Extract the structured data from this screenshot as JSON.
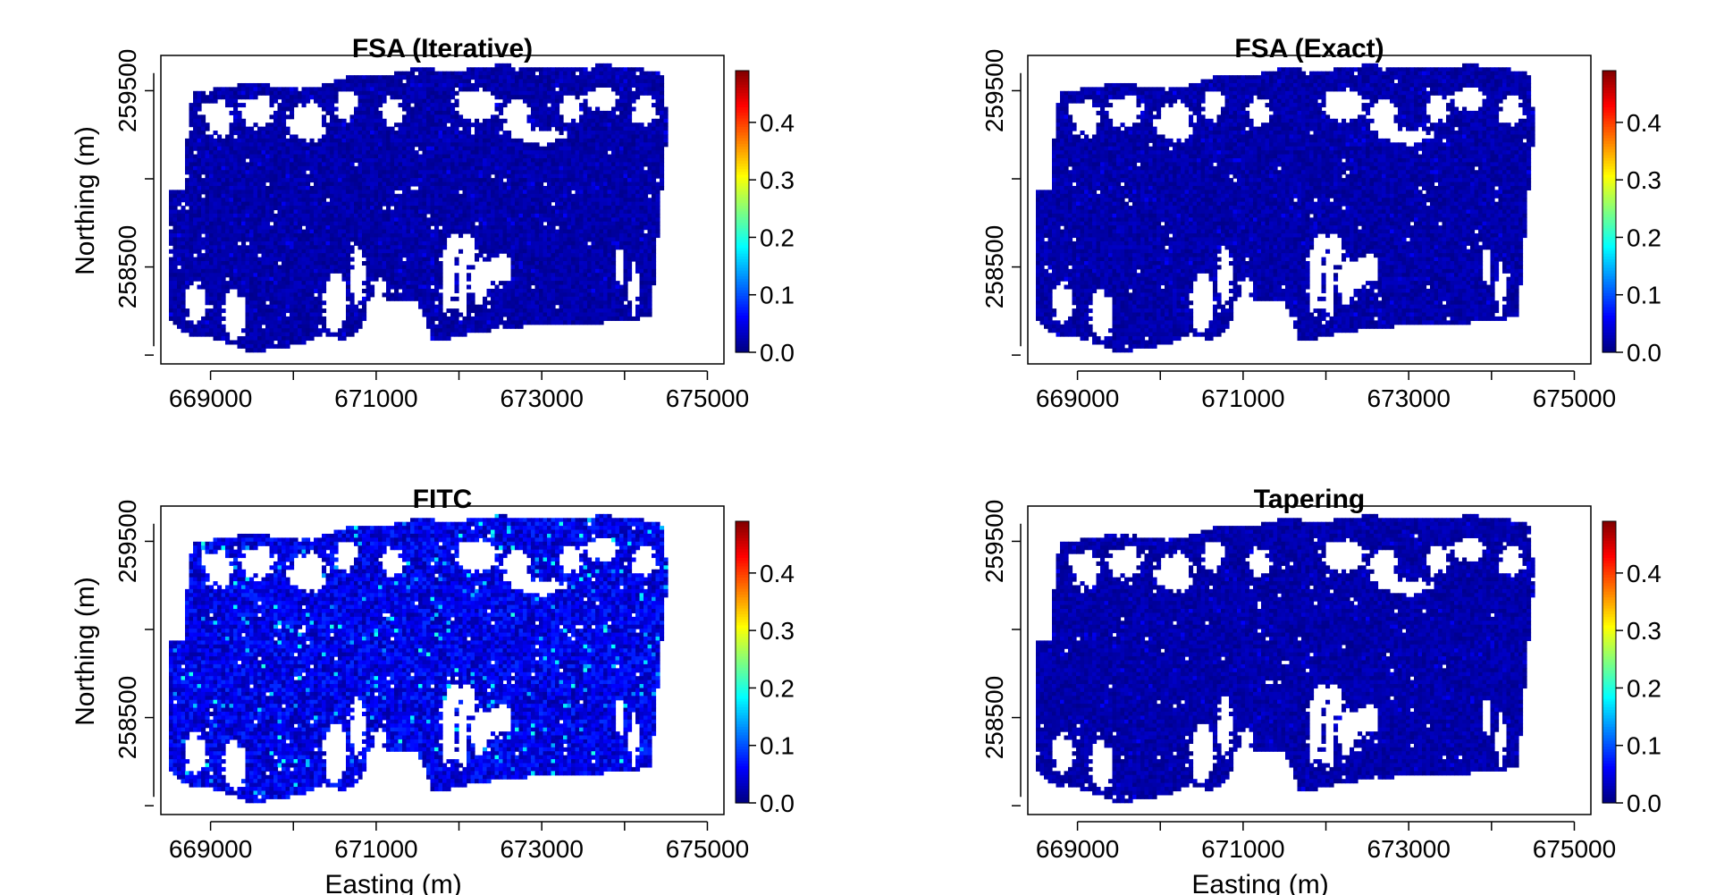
{
  "chart_data": [
    {
      "type": "heatmap",
      "title": "FSA (Iterative)",
      "xlabel": "",
      "ylabel": "Northing (m)",
      "x_ticks": [
        669000,
        671000,
        673000,
        675000
      ],
      "x_tick_labels": [
        "669000",
        "671000",
        "673000",
        "675000"
      ],
      "y_ticks": [
        258500,
        259500
      ],
      "y_tick_labels": [
        "258500",
        "259500"
      ],
      "xlim": [
        668400,
        675200
      ],
      "ylim": [
        257950,
        259700
      ],
      "colorbar_ticks": [
        "0.0",
        "0.1",
        "0.2",
        "0.3",
        "0.4"
      ],
      "colorbar_range": [
        0,
        0.49
      ],
      "intensity_mean": 0.02,
      "intensity_max": 0.06
    },
    {
      "type": "heatmap",
      "title": "FSA (Exact)",
      "xlabel": "",
      "ylabel": "",
      "x_ticks": [
        669000,
        671000,
        673000,
        675000
      ],
      "x_tick_labels": [
        "669000",
        "671000",
        "673000",
        "675000"
      ],
      "y_ticks": [
        258500,
        259500
      ],
      "y_tick_labels": [
        "258500",
        "259500"
      ],
      "xlim": [
        668400,
        675200
      ],
      "ylim": [
        257950,
        259700
      ],
      "colorbar_ticks": [
        "0.0",
        "0.1",
        "0.2",
        "0.3",
        "0.4"
      ],
      "colorbar_range": [
        0,
        0.49
      ],
      "intensity_mean": 0.02,
      "intensity_max": 0.06
    },
    {
      "type": "heatmap",
      "title": "FITC",
      "xlabel": "Easting (m)",
      "ylabel": "Northing (m)",
      "x_ticks": [
        669000,
        671000,
        673000,
        675000
      ],
      "x_tick_labels": [
        "669000",
        "671000",
        "673000",
        "675000"
      ],
      "y_ticks": [
        258500,
        259500
      ],
      "y_tick_labels": [
        "258500",
        "259500"
      ],
      "xlim": [
        668400,
        675200
      ],
      "ylim": [
        257950,
        259700
      ],
      "colorbar_ticks": [
        "0.0",
        "0.1",
        "0.2",
        "0.3",
        "0.4"
      ],
      "colorbar_range": [
        0,
        0.49
      ],
      "intensity_mean": 0.05,
      "intensity_max": 0.2
    },
    {
      "type": "heatmap",
      "title": "Tapering",
      "xlabel": "Easting (m)",
      "ylabel": "",
      "x_ticks": [
        669000,
        671000,
        673000,
        675000
      ],
      "x_tick_labels": [
        "669000",
        "671000",
        "673000",
        "675000"
      ],
      "y_ticks": [
        258500,
        259500
      ],
      "y_tick_labels": [
        "258500",
        "259500"
      ],
      "xlim": [
        668400,
        675200
      ],
      "ylim": [
        257950,
        259700
      ],
      "colorbar_ticks": [
        "0.0",
        "0.1",
        "0.2",
        "0.3",
        "0.4"
      ],
      "colorbar_range": [
        0,
        0.49
      ],
      "intensity_mean": 0.02,
      "intensity_max": 0.06
    }
  ],
  "colorscale": [
    "#00007f",
    "#0000ff",
    "#007fff",
    "#00ffff",
    "#7fff7f",
    "#ffff00",
    "#ff7f00",
    "#ff0000",
    "#7f0000"
  ]
}
